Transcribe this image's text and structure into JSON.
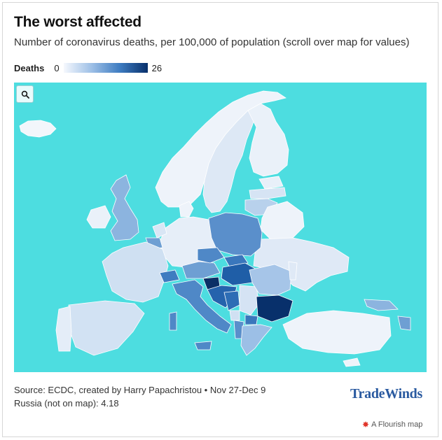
{
  "header": {
    "title": "The worst affected",
    "subtitle": "Number of coronavirus deaths, per 100,000 of population (scroll over map for values)"
  },
  "legend": {
    "label": "Deaths",
    "min": "0",
    "max": "26",
    "color_low": "#f5f8fd",
    "color_high": "#08306b"
  },
  "map": {
    "sea_color": "#4ddde0",
    "zoom_button_icon": "search-icon"
  },
  "footer": {
    "source": "Source: ECDC, created by Harry Papachristou • Nov 27-Dec 9",
    "russia_note": "Russia (not on map): 4.18",
    "brand": "TradeWinds",
    "flourish": "A Flourish map",
    "flourish_icon": "flourish-star-icon"
  }
}
